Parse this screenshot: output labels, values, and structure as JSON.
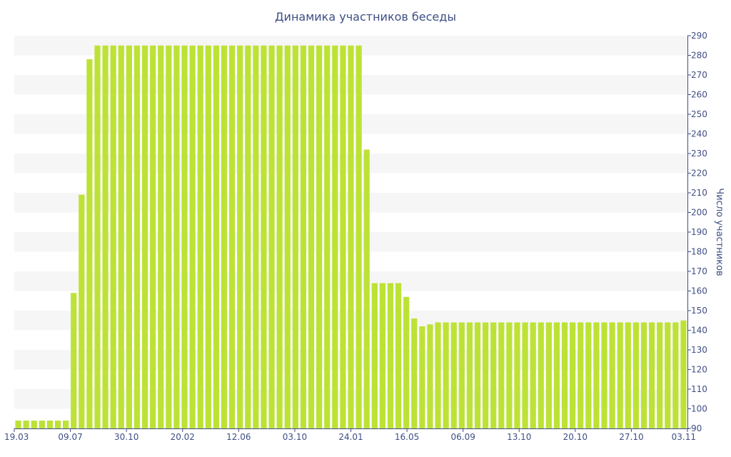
{
  "chart_data": {
    "type": "bar",
    "title": "Динамика участников беседы",
    "xlabel": "",
    "ylabel": "Число участников",
    "ylim": [
      90,
      290
    ],
    "y_ticks": [
      90,
      100,
      110,
      120,
      130,
      140,
      150,
      160,
      170,
      180,
      190,
      200,
      210,
      220,
      230,
      240,
      250,
      260,
      270,
      280,
      290
    ],
    "y_axis_side": "right",
    "x_tick_labels": [
      "19.03",
      "09.07",
      "30.10",
      "20.02",
      "12.06",
      "03.10",
      "24.01",
      "16.05",
      "06.09",
      "13.10",
      "20.10",
      "27.10",
      "03.11"
    ],
    "grid": "alternating horizontal bands",
    "colors": {
      "bar": "#bde236",
      "band": "#f6f6f6",
      "text": "#3e4e84",
      "axis": "#3e4e84"
    },
    "values": [
      94,
      94,
      94,
      94,
      94,
      94,
      94,
      159,
      209,
      278,
      285,
      285,
      285,
      285,
      285,
      285,
      285,
      285,
      285,
      285,
      285,
      285,
      285,
      285,
      285,
      285,
      285,
      285,
      285,
      285,
      285,
      285,
      285,
      285,
      285,
      285,
      285,
      285,
      285,
      285,
      285,
      285,
      285,
      285,
      232,
      164,
      164,
      164,
      164,
      157,
      146,
      142,
      143,
      144,
      144,
      144,
      144,
      144,
      144,
      144,
      144,
      144,
      144,
      144,
      144,
      144,
      144,
      144,
      144,
      144,
      144,
      144,
      144,
      144,
      144,
      144,
      144,
      144,
      144,
      144,
      144,
      144,
      144,
      144,
      145
    ]
  }
}
